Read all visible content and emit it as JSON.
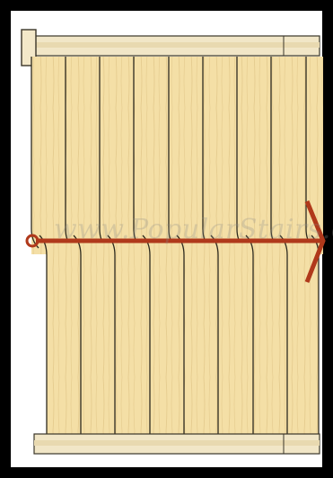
{
  "watermark": {
    "text": "www.PopularStairs.com"
  },
  "colors": {
    "frame": "#000000",
    "wood": "#f4dfa6",
    "wood_grain": "#d8bb78",
    "plank_line": "#2d2a1e",
    "rail": "#efe3c2",
    "arrow": "#b0391b"
  },
  "diagram": {
    "top_row_plank_count": 9,
    "bottom_row_plank_count": 8,
    "arrow_direction": "right"
  }
}
